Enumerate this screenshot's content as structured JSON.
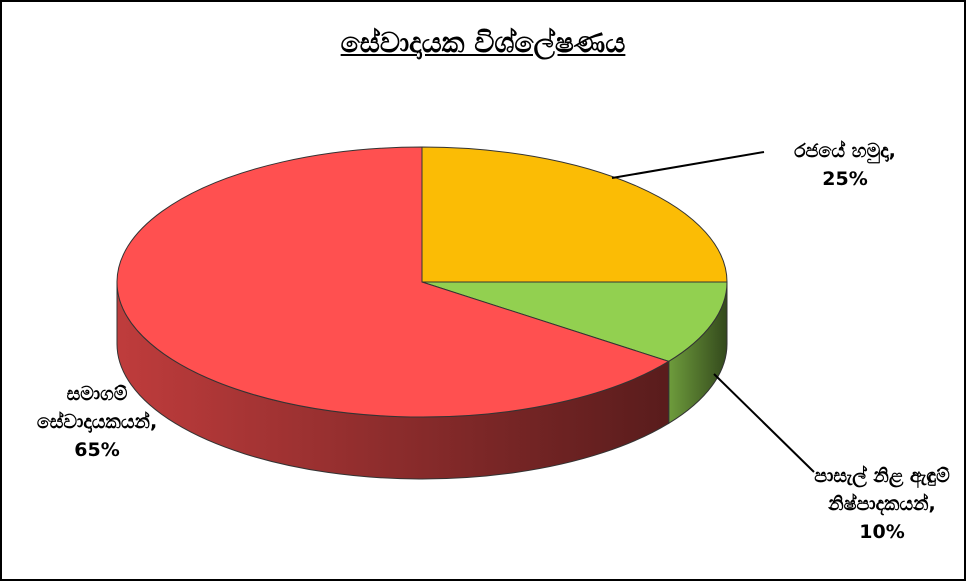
{
  "chart_data": {
    "type": "pie",
    "title": "සේවාදායක විශ්ලේෂණය",
    "categories": [
      "රජයේ හමුදා,",
      "පාසැල් නිළ ඇඳුම් නිෂ්පාදකයන්,",
      "සමාගම් සේවාදායකයන්,"
    ],
    "values": [
      25,
      10,
      65
    ],
    "value_labels": [
      "25%",
      "10%",
      "65%"
    ],
    "colors": [
      "#fbbc05",
      "#92d050",
      "#ff5050"
    ]
  }
}
